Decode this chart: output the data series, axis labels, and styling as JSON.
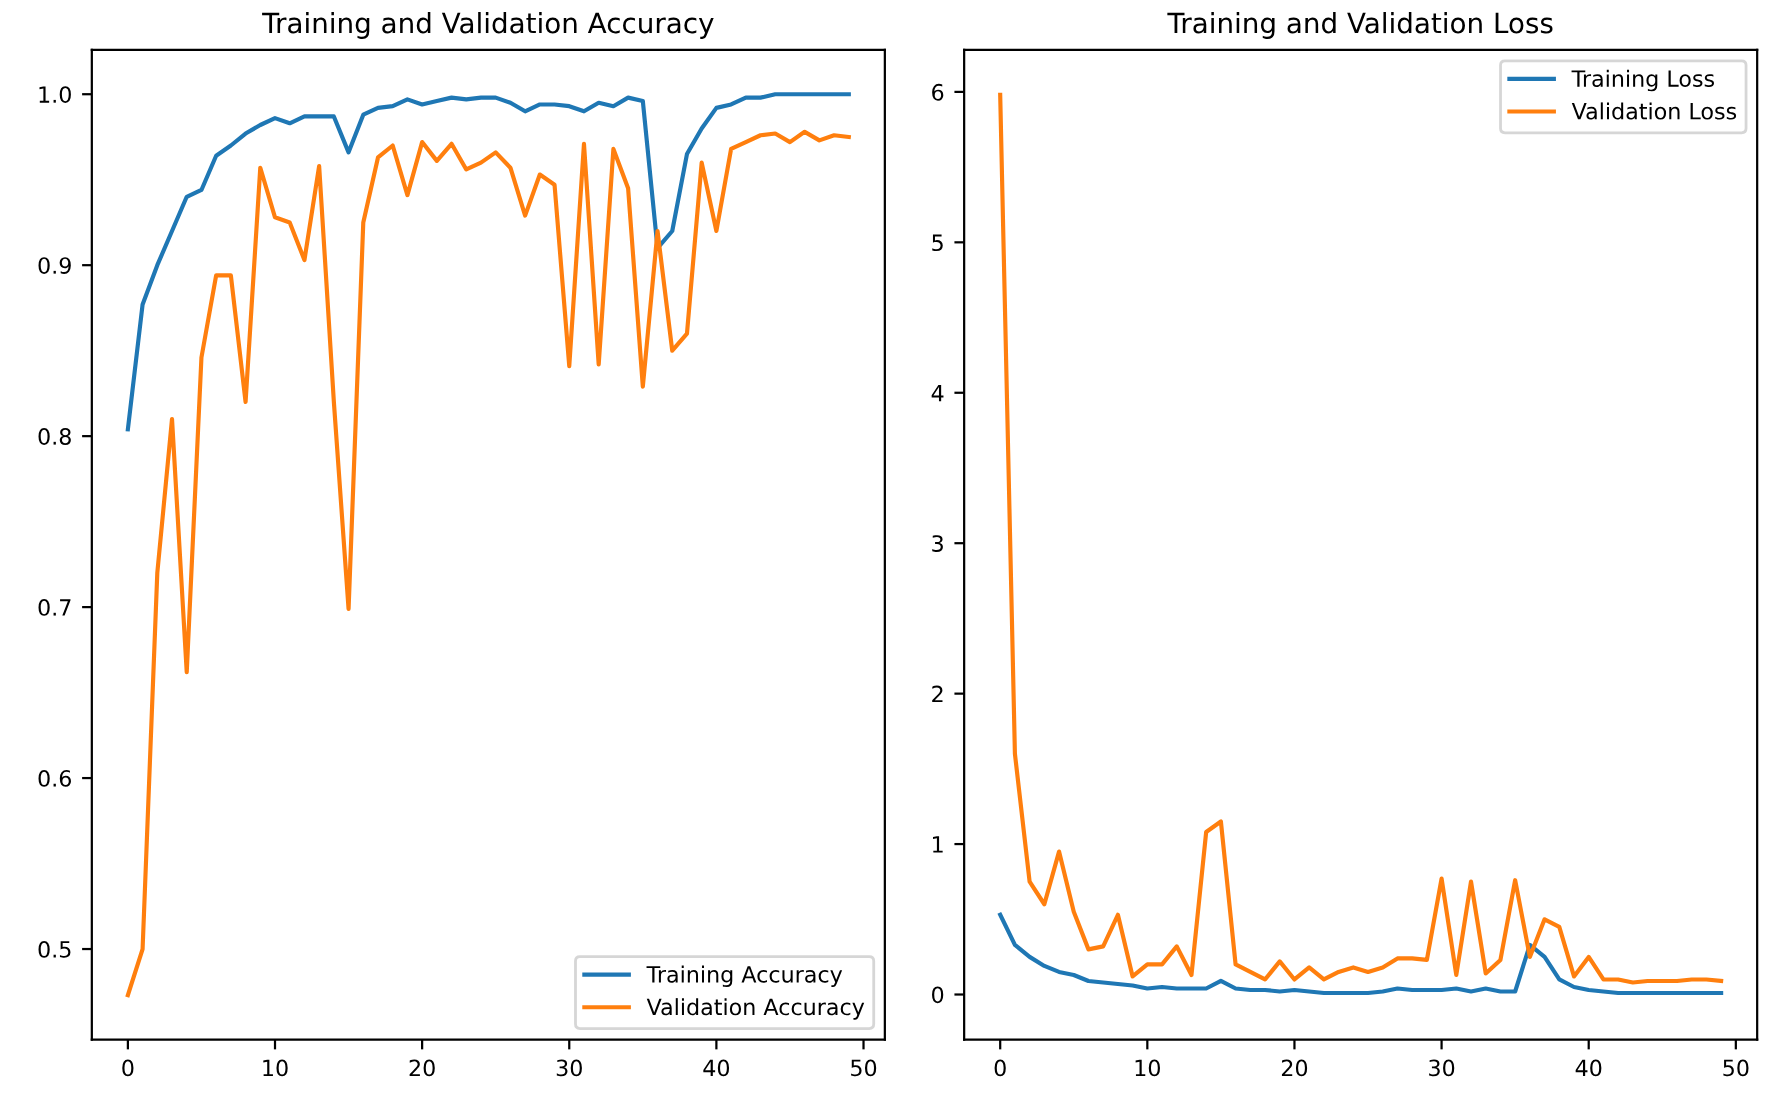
{
  "chart_data": [
    {
      "type": "line",
      "title": "Training and Validation Accuracy",
      "x": [
        0,
        1,
        2,
        3,
        4,
        5,
        6,
        7,
        8,
        9,
        10,
        11,
        12,
        13,
        14,
        15,
        16,
        17,
        18,
        19,
        20,
        21,
        22,
        23,
        24,
        25,
        26,
        27,
        28,
        29,
        30,
        31,
        32,
        33,
        34,
        35,
        36,
        37,
        38,
        39,
        40,
        41,
        42,
        43,
        44,
        45,
        46,
        47,
        48,
        49
      ],
      "series": [
        {
          "name": "Training Accuracy",
          "color": "#1f77b4",
          "values": [
            0.804,
            0.877,
            0.9,
            0.92,
            0.94,
            0.944,
            0.964,
            0.97,
            0.977,
            0.982,
            0.986,
            0.983,
            0.987,
            0.987,
            0.987,
            0.966,
            0.988,
            0.992,
            0.993,
            0.997,
            0.994,
            0.996,
            0.998,
            0.997,
            0.998,
            0.998,
            0.995,
            0.99,
            0.994,
            0.994,
            0.993,
            0.99,
            0.995,
            0.993,
            0.998,
            0.996,
            0.91,
            0.92,
            0.965,
            0.98,
            0.992,
            0.994,
            0.998,
            0.998,
            1.0,
            1.0,
            1.0,
            1.0,
            1.0,
            1.0
          ]
        },
        {
          "name": "Validation Accuracy",
          "color": "#ff7f0e",
          "values": [
            0.473,
            0.5,
            0.72,
            0.81,
            0.662,
            0.846,
            0.894,
            0.894,
            0.82,
            0.957,
            0.928,
            0.925,
            0.903,
            0.958,
            0.82,
            0.699,
            0.925,
            0.963,
            0.97,
            0.941,
            0.972,
            0.961,
            0.971,
            0.956,
            0.96,
            0.966,
            0.957,
            0.929,
            0.953,
            0.947,
            0.841,
            0.971,
            0.842,
            0.968,
            0.945,
            0.829,
            0.92,
            0.85,
            0.86,
            0.96,
            0.92,
            0.968,
            0.972,
            0.976,
            0.977,
            0.972,
            0.978,
            0.973,
            0.976,
            0.975
          ]
        }
      ],
      "xlim": [
        -2.45,
        51.45
      ],
      "xticks": [
        0,
        10,
        20,
        30,
        40,
        50
      ],
      "ylim": [
        0.447,
        1.026
      ],
      "yticks": [
        0.5,
        0.6,
        0.7,
        0.8,
        0.9,
        {
          "value": 1.0,
          "label": "1.0"
        }
      ],
      "legend": "bottom right",
      "grid": false
    },
    {
      "type": "line",
      "title": "Training and Validation Loss",
      "x": [
        0,
        1,
        2,
        3,
        4,
        5,
        6,
        7,
        8,
        9,
        10,
        11,
        12,
        13,
        14,
        15,
        16,
        17,
        18,
        19,
        20,
        21,
        22,
        23,
        24,
        25,
        26,
        27,
        28,
        29,
        30,
        31,
        32,
        33,
        34,
        35,
        36,
        37,
        38,
        39,
        40,
        41,
        42,
        43,
        44,
        45,
        46,
        47,
        48,
        49
      ],
      "series": [
        {
          "name": "Training Loss",
          "color": "#1f77b4",
          "values": [
            0.53,
            0.33,
            0.25,
            0.19,
            0.15,
            0.13,
            0.09,
            0.08,
            0.07,
            0.06,
            0.04,
            0.05,
            0.04,
            0.04,
            0.04,
            0.09,
            0.04,
            0.03,
            0.03,
            0.02,
            0.03,
            0.02,
            0.01,
            0.01,
            0.01,
            0.01,
            0.02,
            0.04,
            0.03,
            0.03,
            0.03,
            0.04,
            0.02,
            0.04,
            0.02,
            0.02,
            0.33,
            0.25,
            0.1,
            0.05,
            0.03,
            0.02,
            0.01,
            0.01,
            0.01,
            0.01,
            0.01,
            0.01,
            0.01,
            0.01
          ]
        },
        {
          "name": "Validation Loss",
          "color": "#ff7f0e",
          "values": [
            5.98,
            1.6,
            0.75,
            0.6,
            0.95,
            0.55,
            0.3,
            0.32,
            0.53,
            0.12,
            0.2,
            0.2,
            0.32,
            0.13,
            1.08,
            1.15,
            0.2,
            0.15,
            0.1,
            0.22,
            0.1,
            0.18,
            0.1,
            0.15,
            0.18,
            0.15,
            0.18,
            0.24,
            0.24,
            0.23,
            0.77,
            0.13,
            0.75,
            0.14,
            0.23,
            0.76,
            0.25,
            0.5,
            0.45,
            0.12,
            0.25,
            0.1,
            0.1,
            0.08,
            0.09,
            0.09,
            0.09,
            0.1,
            0.1,
            0.09
          ]
        }
      ],
      "xlim": [
        -2.45,
        51.45
      ],
      "xticks": [
        0,
        10,
        20,
        30,
        40,
        50
      ],
      "ylim": [
        -0.3,
        6.28
      ],
      "yticks": [
        0,
        1,
        2,
        3,
        4,
        5,
        6
      ],
      "legend": "top right",
      "grid": false
    }
  ]
}
